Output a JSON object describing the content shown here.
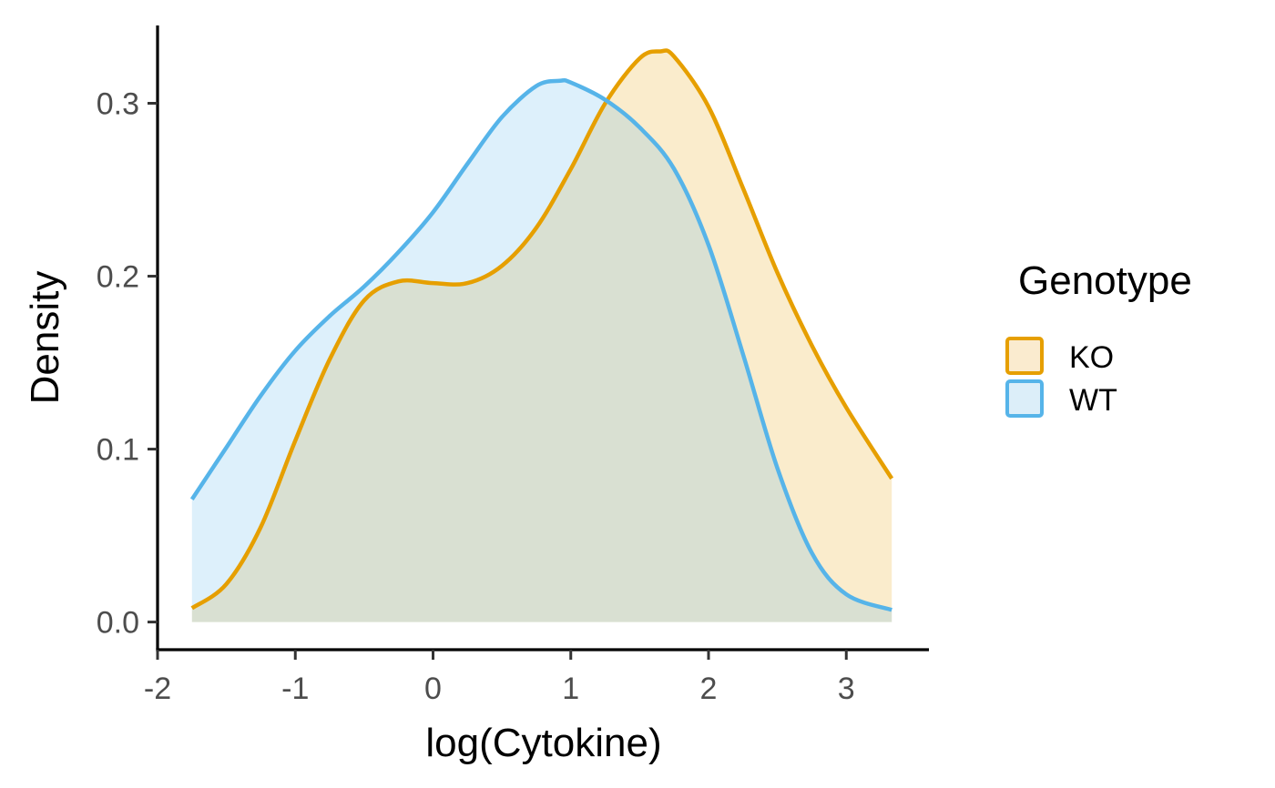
{
  "chart_data": {
    "type": "area",
    "xlabel": "log(Cytokine)",
    "ylabel": "Density",
    "xlim": [
      -2,
      3.6
    ],
    "ylim": [
      -0.016,
      0.345
    ],
    "x_ticks": [
      {
        "value": -2,
        "label": "-2"
      },
      {
        "value": -1,
        "label": "-1"
      },
      {
        "value": 0,
        "label": "0"
      },
      {
        "value": 1,
        "label": "1"
      },
      {
        "value": 2,
        "label": "2"
      },
      {
        "value": 3,
        "label": "3"
      }
    ],
    "y_ticks": [
      {
        "value": 0.0,
        "label": "0.0"
      },
      {
        "value": 0.1,
        "label": "0.1"
      },
      {
        "value": 0.2,
        "label": "0.2"
      },
      {
        "value": 0.3,
        "label": "0.3"
      }
    ],
    "grid": false,
    "legend": {
      "title": "Genotype",
      "position": "right"
    },
    "series": [
      {
        "name": "KO",
        "color": "#E69F00",
        "fill": "#FAEBCF",
        "x": [
          -1.75,
          -1.5,
          -1.25,
          -1.0,
          -0.75,
          -0.5,
          -0.25,
          0.0,
          0.25,
          0.5,
          0.75,
          1.0,
          1.25,
          1.5,
          1.65,
          1.75,
          2.0,
          2.25,
          2.5,
          2.75,
          3.0,
          3.33
        ],
        "y": [
          0.008,
          0.022,
          0.055,
          0.105,
          0.152,
          0.186,
          0.197,
          0.196,
          0.196,
          0.206,
          0.228,
          0.262,
          0.3,
          0.326,
          0.33,
          0.327,
          0.298,
          0.251,
          0.202,
          0.16,
          0.124,
          0.083
        ]
      },
      {
        "name": "WT",
        "color": "#56B4E9",
        "fill": "#DCEEF9",
        "x": [
          -1.75,
          -1.5,
          -1.25,
          -1.0,
          -0.75,
          -0.5,
          -0.25,
          0.0,
          0.25,
          0.5,
          0.75,
          0.92,
          1.0,
          1.25,
          1.5,
          1.75,
          2.0,
          2.25,
          2.5,
          2.75,
          3.0,
          3.33
        ],
        "y": [
          0.071,
          0.101,
          0.131,
          0.157,
          0.177,
          0.194,
          0.214,
          0.237,
          0.265,
          0.292,
          0.31,
          0.313,
          0.312,
          0.302,
          0.286,
          0.262,
          0.218,
          0.155,
          0.089,
          0.04,
          0.016,
          0.007
        ]
      }
    ]
  }
}
